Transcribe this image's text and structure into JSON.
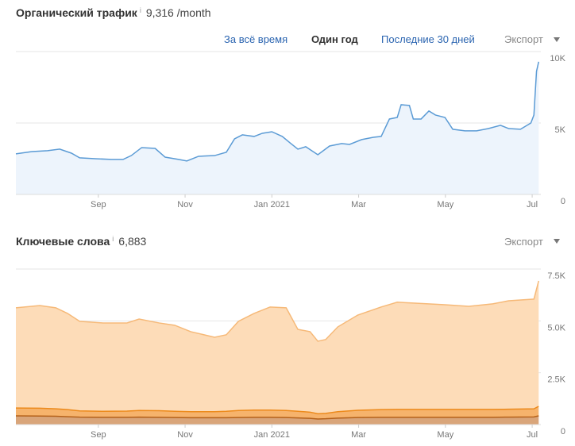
{
  "chart_data": [
    {
      "type": "area",
      "title": "Органический трафик",
      "info": "i",
      "summary": "9,316 /month",
      "tabs": [
        "За всё время",
        "Один год",
        "Последние 30 дней"
      ],
      "selected_tab": 1,
      "export": "Экспорт",
      "x": [
        7.1,
        7.47,
        7.83,
        8.11,
        8.38,
        8.57,
        8.93,
        9.3,
        9.57,
        9.76,
        10.0,
        10.31,
        10.54,
        10.85,
        11.04,
        11.31,
        11.68,
        11.95,
        12.14,
        12.32,
        12.59,
        12.78,
        13.0,
        13.24,
        13.42,
        13.6,
        13.78,
        14.06,
        14.33,
        14.61,
        14.79,
        15.07,
        15.34,
        15.52,
        15.71,
        15.89,
        15.98,
        16.17,
        16.26,
        16.44,
        16.62,
        16.77,
        16.99,
        17.17,
        17.45,
        17.72,
        17.99,
        18.27,
        18.46,
        18.73,
        18.97,
        19.04,
        19.1,
        19.15
      ],
      "series": [
        {
          "color": "#5b9bd5",
          "fill": "#edf4fc",
          "values": [
            2840,
            3000,
            3060,
            3170,
            2890,
            2560,
            2500,
            2450,
            2450,
            2720,
            3280,
            3220,
            2610,
            2450,
            2340,
            2670,
            2720,
            2950,
            3890,
            4170,
            4060,
            4280,
            4390,
            4060,
            3610,
            3170,
            3340,
            2780,
            3390,
            3560,
            3500,
            3840,
            4000,
            4060,
            5280,
            5390,
            6280,
            6230,
            5280,
            5280,
            5840,
            5560,
            5390,
            4560,
            4450,
            4450,
            4610,
            4840,
            4610,
            4560,
            5000,
            5560,
            8620,
            9290
          ]
        }
      ],
      "xlim": [
        7.1,
        19.2
      ],
      "xticks": [
        {
          "value": 9,
          "label": "Sep"
        },
        {
          "value": 11,
          "label": "Nov"
        },
        {
          "value": 13,
          "label": "Jan 2021"
        },
        {
          "value": 15,
          "label": "Mar"
        },
        {
          "value": 17,
          "label": "May"
        },
        {
          "value": 19,
          "label": "Jul"
        }
      ],
      "ylim": [
        0,
        10000
      ],
      "yticks": [
        0,
        {
          "value": 5000,
          "label": "5K"
        },
        {
          "value": 10000,
          "label": "10K"
        }
      ],
      "grid": true
    },
    {
      "type": "stacked_area",
      "title": "Ключевые слова",
      "info": "i",
      "summary": "6,883",
      "export": "Экспорт",
      "x": [
        7.1,
        7.65,
        8.02,
        8.29,
        8.57,
        9.11,
        9.66,
        9.94,
        10.4,
        10.76,
        11.13,
        11.68,
        11.95,
        12.23,
        12.59,
        12.96,
        13.33,
        13.6,
        13.88,
        14.06,
        14.24,
        14.52,
        14.98,
        15.52,
        15.89,
        16.26,
        16.99,
        17.54,
        18.09,
        18.46,
        19.04,
        19.15
      ],
      "series": [
        {
          "color": "#b4611a",
          "fill": "#d9a57a",
          "values": [
            420,
            410,
            400,
            380,
            360,
            350,
            350,
            360,
            350,
            340,
            330,
            330,
            330,
            340,
            350,
            350,
            340,
            320,
            300,
            270,
            280,
            310,
            340,
            350,
            350,
            350,
            350,
            350,
            350,
            360,
            370,
            420
          ]
        },
        {
          "color": "#ec8a1c",
          "fill": "#f6b36c",
          "values": [
            380,
            380,
            360,
            340,
            300,
            290,
            300,
            320,
            320,
            300,
            290,
            290,
            310,
            340,
            350,
            350,
            340,
            320,
            300,
            250,
            260,
            310,
            350,
            370,
            380,
            380,
            380,
            380,
            380,
            380,
            390,
            460
          ]
        },
        {
          "color": "#f6b978",
          "fill": "#fddcb8",
          "values": [
            4830,
            4950,
            4870,
            4640,
            4320,
            4260,
            4250,
            4410,
            4230,
            4150,
            3860,
            3590,
            3690,
            4300,
            4660,
            4970,
            4950,
            3950,
            3880,
            3500,
            3560,
            4090,
            4590,
            4950,
            5170,
            5130,
            5050,
            4970,
            5090,
            5230,
            5290,
            6050
          ]
        }
      ],
      "xlim": [
        7.1,
        19.2
      ],
      "xticks": [
        {
          "value": 9,
          "label": "Sep"
        },
        {
          "value": 11,
          "label": "Nov"
        },
        {
          "value": 13,
          "label": "Jan 2021"
        },
        {
          "value": 15,
          "label": "Mar"
        },
        {
          "value": 17,
          "label": "May"
        },
        {
          "value": 19,
          "label": "Jul"
        }
      ],
      "ylim": [
        0,
        7500
      ],
      "yticks": [
        0,
        {
          "value": 2500,
          "label": "2.5K"
        },
        {
          "value": 5000,
          "label": "5.0K"
        },
        {
          "value": 7500,
          "label": "7.5K"
        }
      ],
      "grid": true
    }
  ]
}
